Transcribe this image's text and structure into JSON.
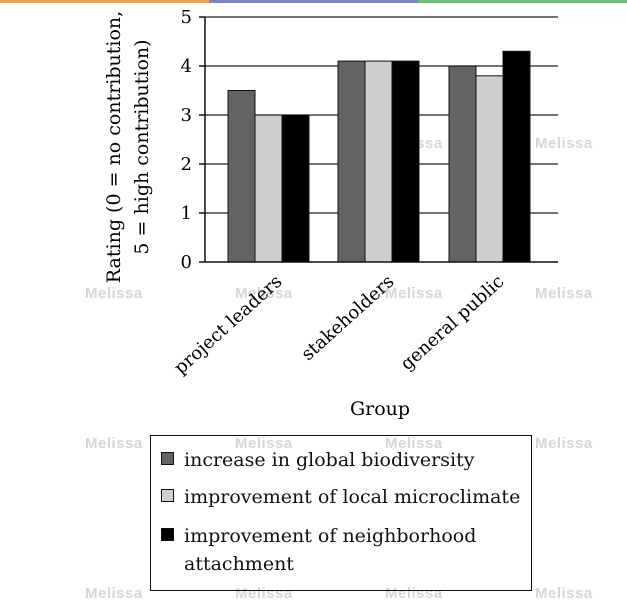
{
  "chart_data": {
    "type": "bar",
    "categories": [
      "project leaders",
      "stakeholders",
      "general public"
    ],
    "series": [
      {
        "name": "increase in global biodiversity",
        "values": [
          3.5,
          4.1,
          4.0
        ],
        "color": "#636363"
      },
      {
        "name": "improvement of local microclimate",
        "values": [
          3.0,
          4.1,
          3.8
        ],
        "color": "#cfcfcf"
      },
      {
        "name": "improvement of neighborhood attachment",
        "values": [
          3.0,
          4.1,
          4.3
        ],
        "color": "#000000"
      }
    ],
    "xlabel": "Group",
    "ylabel": [
      "Rating (0 = no contribution,",
      "5 = high contribution)"
    ],
    "ylim": [
      0,
      5
    ],
    "yticks": [
      0,
      1,
      2,
      3,
      4,
      5
    ],
    "grid": true,
    "legend_position": "bottom"
  },
  "watermark": "Melissa",
  "strip_colors": [
    "#e7a45c",
    "#7a86c9",
    "#6cc07a"
  ]
}
